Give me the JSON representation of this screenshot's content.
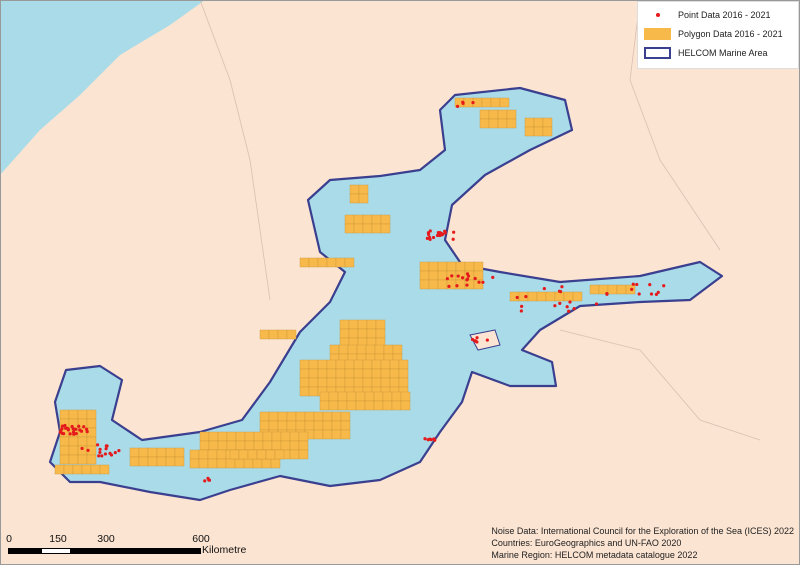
{
  "legend": {
    "items": [
      {
        "label": "Point Data 2016 - 2021",
        "symbol": "red-dot",
        "color": "#e41a1c"
      },
      {
        "label": "Polygon Data 2016 - 2021",
        "symbol": "orange-fill",
        "color": "#f7b94a"
      },
      {
        "label": "HELCOM Marine Area",
        "symbol": "outline",
        "color": "#3a3f8f"
      }
    ]
  },
  "scale_bar": {
    "ticks": [
      "0",
      "150",
      "300",
      "600"
    ],
    "unit": "Kilometre"
  },
  "credits": [
    "Noise Data: International Council for the Exploration of the Sea (ICES) 2022",
    "Countries: EuroGeographics and UN-FAO 2020",
    "Marine Region: HELCOM metadata catalogue 2022"
  ],
  "colors": {
    "land": "#fbe4d2",
    "sea": "#aadbe8",
    "helcom_outline": "#3a3f8f",
    "polygon_fill": "#f7b94a",
    "point": "#e41a1c"
  }
}
